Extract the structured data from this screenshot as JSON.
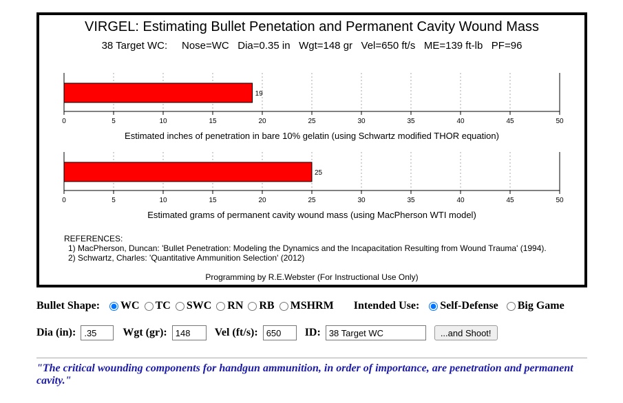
{
  "panel": {
    "title": "VIRGEL: Estimating Bullet Penetation and Permanent Cavity Wound Mass",
    "subtitle": "38 Target WC:     Nose=WC   Dia=0.35 in   Wgt=148 gr   Vel=650 ft/s   ME=139 ft-lb   PF=96",
    "references_heading": "REFERENCES:",
    "references": [
      "1) MacPherson, Duncan: 'Bullet Penetration: Modeling the Dynamics and the Incapacitation Resulting from Wound Trauma' (1994).",
      "2) Schwartz, Charles: 'Quantitative Ammunition Selection' (2012)"
    ],
    "credit": "Programming by R.E.Webster (For Instructional Use Only)"
  },
  "chart_data": [
    {
      "type": "bar",
      "values": [
        19
      ],
      "value_labels": [
        "19"
      ],
      "xlim": [
        0,
        50
      ],
      "ticks": [
        "0",
        "5",
        "10",
        "15",
        "20",
        "25",
        "30",
        "35",
        "40",
        "45",
        "50"
      ],
      "xlabel": "Estimated inches of penetration in bare 10% gelatin (using Schwartz modified THOR equation)",
      "bar_color": "#ff0000",
      "grid": "vertical dashed"
    },
    {
      "type": "bar",
      "values": [
        25
      ],
      "value_labels": [
        "25"
      ],
      "xlim": [
        0,
        50
      ],
      "ticks": [
        "0",
        "5",
        "10",
        "15",
        "20",
        "25",
        "30",
        "35",
        "40",
        "45",
        "50"
      ],
      "xlabel": "Estimated grams of permanent cavity wound mass (using MacPherson WTI model)",
      "bar_color": "#ff0000",
      "grid": "vertical dashed"
    }
  ],
  "form": {
    "shape_label": "Bullet Shape:",
    "shapes": [
      {
        "label": "WC",
        "checked": true
      },
      {
        "label": "TC",
        "checked": false
      },
      {
        "label": "SWC",
        "checked": false
      },
      {
        "label": "RN",
        "checked": false
      },
      {
        "label": "RB",
        "checked": false
      },
      {
        "label": "MSHRM",
        "checked": false
      }
    ],
    "use_label": "Intended Use:",
    "uses": [
      {
        "label": "Self-Defense",
        "checked": true
      },
      {
        "label": "Big Game",
        "checked": false
      }
    ],
    "dia_label": "Dia (in):",
    "dia_value": ".35",
    "wgt_label": "Wgt (gr):",
    "wgt_value": "148",
    "vel_label": "Vel (ft/s):",
    "vel_value": "650",
    "id_label": "ID:",
    "id_value": "38 Target WC",
    "shoot_label": "...and Shoot!"
  },
  "quote": "\"The critical wounding components for handgun ammunition, in order of importance, are penetration and permanent cavity.\""
}
